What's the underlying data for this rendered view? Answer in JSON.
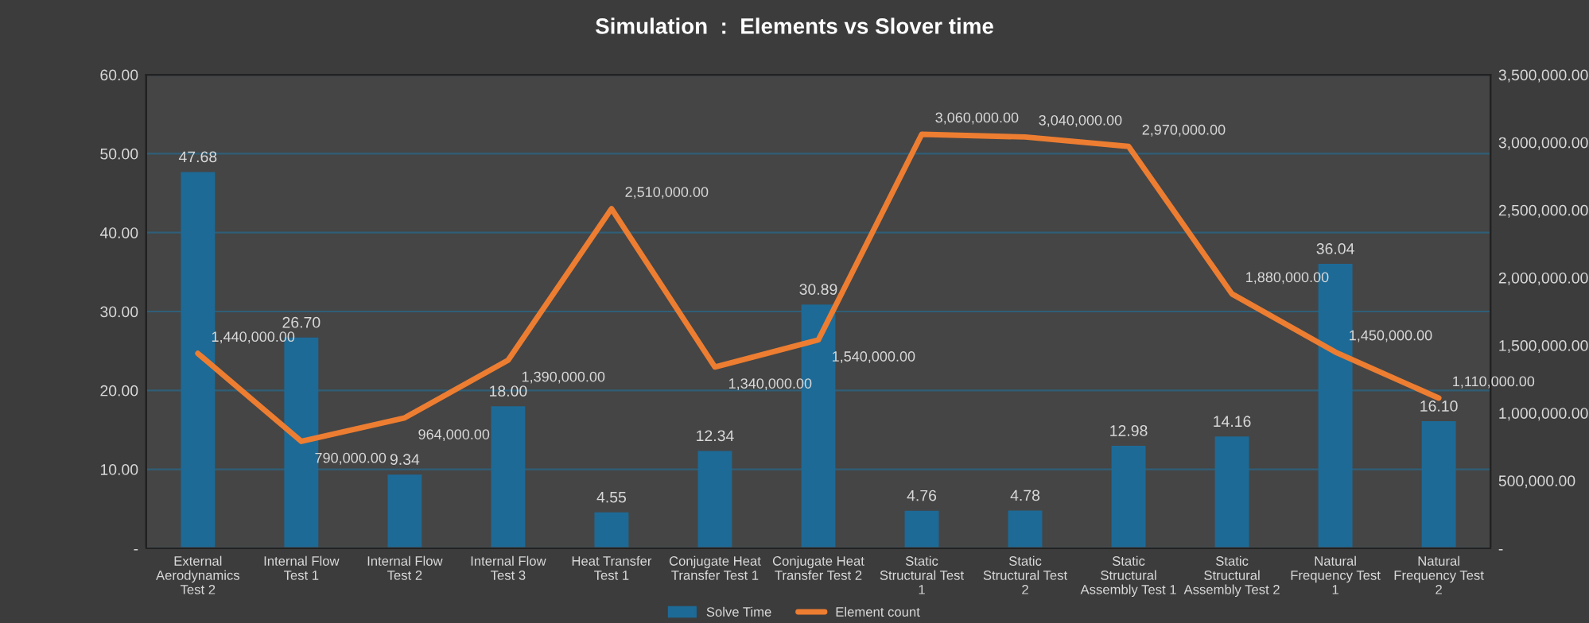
{
  "chart_data": {
    "type": "bar",
    "title": "Simulation  :  Elements vs Slover time",
    "categories": [
      "External Aerodynamics Test 2",
      "Internal Flow Test 1",
      "Internal Flow Test 2",
      "Internal Flow Test 3",
      "Heat Transfer Test 1",
      "Conjugate Heat Transfer Test 1",
      "Conjugate Heat Transfer Test 2",
      "Static Structural Test 1",
      "Static Structural Test 2",
      "Static Structural Assembly Test 1",
      "Static Structural Assembly Test 2",
      "Natural Frequency Test 1",
      "Natural Frequency Test 2"
    ],
    "series": [
      {
        "name": "Solve Time",
        "color": "#1d6a96",
        "values": [
          47.68,
          26.7,
          9.34,
          18.0,
          4.55,
          12.34,
          30.89,
          4.76,
          4.78,
          12.98,
          14.16,
          36.04,
          16.1
        ],
        "value_labels": [
          "47.68",
          "26.70",
          "9.34",
          "18.00",
          "4.55",
          "12.34",
          "30.89",
          "4.76",
          "4.78",
          "12.98",
          "14.16",
          "36.04",
          "16.10"
        ]
      },
      {
        "name": "Element count",
        "type": "line",
        "axis": "y2",
        "color": "#ed7d31",
        "values": [
          1440000,
          790000,
          964000,
          1390000,
          2510000,
          1340000,
          1540000,
          3060000,
          3040000,
          2970000,
          1880000,
          1450000,
          1110000
        ],
        "value_labels": [
          "1,440,000.00",
          "790,000.00",
          "964,000.00",
          "1,390,000.00",
          "2,510,000.00",
          "1,340,000.00",
          "1,540,000.00",
          "3,060,000.00",
          "3,040,000.00",
          "2,970,000.00",
          "1,880,000.00",
          "1,450,000.00",
          "1,110,000.00"
        ]
      }
    ],
    "ylim": [
      0,
      60
    ],
    "yticks": [
      {
        "value": 0,
        "label": "-"
      },
      {
        "value": 10,
        "label": "10.00"
      },
      {
        "value": 20,
        "label": "20.00"
      },
      {
        "value": 30,
        "label": "30.00"
      },
      {
        "value": 40,
        "label": "40.00"
      },
      {
        "value": 50,
        "label": "50.00"
      },
      {
        "value": 60,
        "label": "60.00"
      }
    ],
    "y2lim": [
      0,
      3500000
    ],
    "y2ticks": [
      {
        "value": 0,
        "label": "-"
      },
      {
        "value": 500000,
        "label": "500,000.00"
      },
      {
        "value": 1000000,
        "label": "1,000,000.00"
      },
      {
        "value": 1500000,
        "label": "1,500,000.00"
      },
      {
        "value": 2000000,
        "label": "2,000,000.00"
      },
      {
        "value": 2500000,
        "label": "2,500,000.00"
      },
      {
        "value": 3000000,
        "label": "3,000,000.00"
      },
      {
        "value": 3500000,
        "label": "3,500,000.00"
      }
    ],
    "grid": "y",
    "legend": "bottom",
    "marker": "none",
    "line_style": "solid"
  }
}
